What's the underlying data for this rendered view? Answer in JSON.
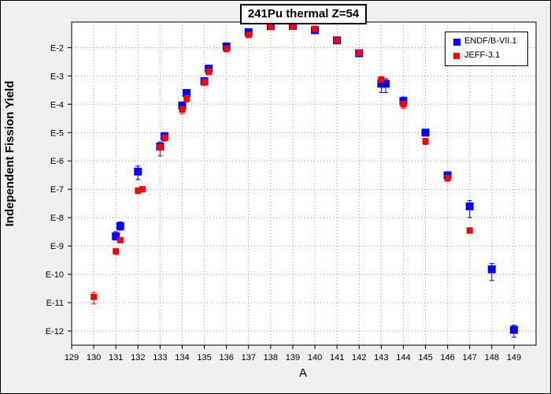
{
  "chart_data": {
    "type": "scatter",
    "title": "241Pu thermal Z=54",
    "xlabel": "A",
    "ylabel": "Independent Fission Yield",
    "x_ticks": [
      129,
      130,
      131,
      132,
      133,
      134,
      135,
      136,
      137,
      138,
      139,
      140,
      141,
      142,
      143,
      144,
      145,
      146,
      147,
      148,
      149
    ],
    "y_scale": "log",
    "y_ticks": [
      {
        "exp": -2,
        "label": "E-2"
      },
      {
        "exp": -3,
        "label": "E-3"
      },
      {
        "exp": -4,
        "label": "E-4"
      },
      {
        "exp": -5,
        "label": "E-5"
      },
      {
        "exp": -6,
        "label": "E-6"
      },
      {
        "exp": -7,
        "label": "E-7"
      },
      {
        "exp": -8,
        "label": "E-8"
      },
      {
        "exp": -9,
        "label": "E-9"
      },
      {
        "exp": -10,
        "label": "E-10"
      },
      {
        "exp": -11,
        "label": "E-11"
      },
      {
        "exp": -12,
        "label": "E-12"
      }
    ],
    "xlim": [
      129,
      150
    ],
    "ylim_exp": [
      -12.5,
      -1.1
    ],
    "grid": true,
    "legend_position": "top-right",
    "series": [
      {
        "name": "ENDF/B-VII.1",
        "color": "#0000ff",
        "marker": "square",
        "points": [
          {
            "x": 131,
            "y": 2.2e-09,
            "ylo": 1.6e-09,
            "yhi": 3.2e-09
          },
          {
            "x": 131.2,
            "y": 5e-09,
            "ylo": 3.6e-09,
            "yhi": 7e-09
          },
          {
            "x": 132,
            "y": 4.2e-07,
            "ylo": 2.2e-07,
            "yhi": 6.6e-07
          },
          {
            "x": 133,
            "y": 3.2e-06,
            "ylo": 1.5e-06,
            "yhi": 4.7e-06
          },
          {
            "x": 133.2,
            "y": 7.5e-06,
            "ylo": 5e-06,
            "yhi": 1e-05
          },
          {
            "x": 134,
            "y": 9e-05,
            "ylo": 6.5e-05,
            "yhi": 0.00012
          },
          {
            "x": 134.2,
            "y": 0.00025,
            "ylo": 0.00018,
            "yhi": 0.00032
          },
          {
            "x": 135,
            "y": 0.00065,
            "ylo": 0.0005,
            "yhi": 0.0008
          },
          {
            "x": 135.2,
            "y": 0.0018,
            "ylo": 0.0014,
            "yhi": 0.0023
          },
          {
            "x": 136,
            "y": 0.011,
            "ylo": 0.009,
            "yhi": 0.013
          },
          {
            "x": 137,
            "y": 0.035,
            "ylo": 0.031,
            "yhi": 0.039
          },
          {
            "x": 138,
            "y": 0.057,
            "ylo": 0.055,
            "yhi": 0.059
          },
          {
            "x": 139,
            "y": 0.058,
            "ylo": 0.056,
            "yhi": 0.06
          },
          {
            "x": 140,
            "y": 0.041,
            "ylo": 0.038,
            "yhi": 0.044
          },
          {
            "x": 141,
            "y": 0.018,
            "ylo": 0.016,
            "yhi": 0.02
          },
          {
            "x": 142,
            "y": 0.0063,
            "ylo": 0.005,
            "yhi": 0.0076
          },
          {
            "x": 143,
            "y": 0.00053,
            "ylo": 0.00026,
            "yhi": 0.0008
          },
          {
            "x": 143.2,
            "y": 0.00053,
            "ylo": 0.00026,
            "yhi": 0.0008
          },
          {
            "x": 144,
            "y": 0.00013,
            "ylo": 8e-05,
            "yhi": 0.00018
          },
          {
            "x": 145,
            "y": 1e-05,
            "ylo": 7.5e-06,
            "yhi": 1.3e-05
          },
          {
            "x": 146,
            "y": 3.1e-07,
            "ylo": 2.2e-07,
            "yhi": 4e-07
          },
          {
            "x": 147,
            "y": 2.5e-08,
            "ylo": 1e-08,
            "yhi": 4e-08
          },
          {
            "x": 148,
            "y": 1.5e-10,
            "ylo": 6e-11,
            "yhi": 2.4e-10
          },
          {
            "x": 149,
            "y": 1.1e-12,
            "ylo": 6e-13,
            "yhi": 1.6e-12
          }
        ]
      },
      {
        "name": "JEFF-3.1",
        "color": "#ff0000",
        "marker": "square",
        "points": [
          {
            "x": 130,
            "y": 1.6e-11,
            "ylo": 9e-12,
            "yhi": 2.3e-11
          },
          {
            "x": 131,
            "y": 6.5e-10,
            "ylo": 5e-10,
            "yhi": 8e-10
          },
          {
            "x": 131.2,
            "y": 1.6e-09,
            "ylo": 1.3e-09,
            "yhi": 1.9e-09
          },
          {
            "x": 132,
            "y": 9e-08,
            "ylo": 7e-08,
            "yhi": 1.1e-07
          },
          {
            "x": 132.2,
            "y": 1e-07,
            "ylo": 8e-08,
            "yhi": 1.2e-07
          },
          {
            "x": 133,
            "y": 3e-06,
            "ylo": 2.4e-06,
            "yhi": 3.6e-06
          },
          {
            "x": 133.2,
            "y": 6.5e-06,
            "ylo": 5.3e-06,
            "yhi": 7.7e-06
          },
          {
            "x": 134,
            "y": 6.5e-05,
            "ylo": 4.5e-05,
            "yhi": 8.5e-05
          },
          {
            "x": 134.2,
            "y": 0.00016,
            "ylo": 0.00012,
            "yhi": 0.0002
          },
          {
            "x": 135,
            "y": 0.0006,
            "ylo": 0.00045,
            "yhi": 0.00075
          },
          {
            "x": 135.2,
            "y": 0.0014,
            "ylo": 0.0011,
            "yhi": 0.0017
          },
          {
            "x": 136,
            "y": 0.009,
            "ylo": 0.007,
            "yhi": 0.011
          },
          {
            "x": 137,
            "y": 0.028,
            "ylo": 0.024,
            "yhi": 0.032
          },
          {
            "x": 138,
            "y": 0.055,
            "ylo": 0.053,
            "yhi": 0.057
          },
          {
            "x": 139,
            "y": 0.056,
            "ylo": 0.054,
            "yhi": 0.058
          },
          {
            "x": 140,
            "y": 0.046,
            "ylo": 0.043,
            "yhi": 0.049
          },
          {
            "x": 141,
            "y": 0.018,
            "ylo": 0.016,
            "yhi": 0.02
          },
          {
            "x": 142,
            "y": 0.0065,
            "ylo": 0.0053,
            "yhi": 0.0077
          },
          {
            "x": 143,
            "y": 0.00075,
            "ylo": 0.0006,
            "yhi": 0.0009
          },
          {
            "x": 144,
            "y": 0.0001,
            "ylo": 7e-05,
            "yhi": 0.00013
          },
          {
            "x": 145,
            "y": 5e-06,
            "ylo": 3.8e-06,
            "yhi": 6.2e-06
          },
          {
            "x": 146,
            "y": 2.5e-07,
            "ylo": 1.9e-07,
            "yhi": 3.1e-07
          },
          {
            "x": 147,
            "y": 3.5e-09,
            "ylo": 2.8e-09,
            "yhi": 4.2e-09
          }
        ]
      }
    ]
  }
}
